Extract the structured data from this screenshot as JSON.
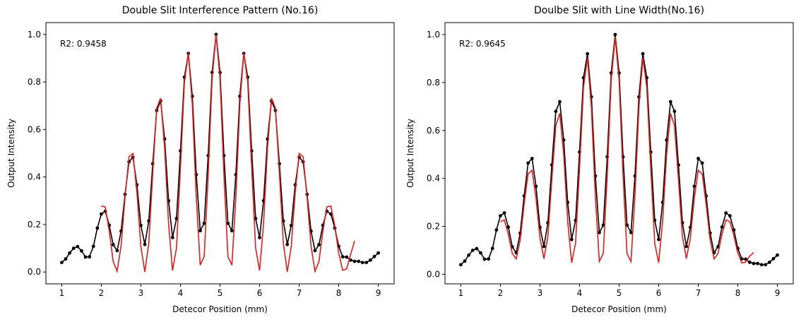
{
  "chart_data": [
    {
      "type": "line",
      "title": "Double Slit Interference Pattern (No.16)",
      "xlabel": "Detecor Position (mm)",
      "ylabel": "Output Intensity",
      "annotation": "R2: 0.9458",
      "xlim": [
        0.6,
        9.4
      ],
      "ylim": [
        -0.05,
        1.05
      ],
      "xticks": [
        1,
        2,
        3,
        4,
        5,
        6,
        7,
        8,
        9
      ],
      "yticks": [
        {
          "value": 0,
          "label": "0.0"
        },
        {
          "value": 0.2,
          "label": "0.2"
        },
        {
          "value": 0.4,
          "label": "0.4"
        },
        {
          "value": 0.6,
          "label": "0.6"
        },
        {
          "value": 0.8,
          "label": "0.8"
        },
        {
          "value": 1,
          "label": "1.0"
        }
      ],
      "series": [
        {
          "color": "#000000",
          "marker": true,
          "x": [
            1,
            1.1,
            1.2,
            1.3,
            1.4,
            1.5,
            1.6,
            1.7,
            1.8,
            1.9,
            2,
            2.1,
            2.2,
            2.3,
            2.4,
            2.5,
            2.6,
            2.7,
            2.8,
            2.9,
            3,
            3.1,
            3.2,
            3.3,
            3.4,
            3.5,
            3.6,
            3.7,
            3.8,
            3.9,
            4,
            4.1,
            4.2,
            4.3,
            4.4,
            4.5,
            4.6,
            4.7,
            4.8,
            4.9,
            5,
            5.1,
            5.2,
            5.3,
            5.4,
            5.5,
            5.6,
            5.7,
            5.8,
            5.9,
            6,
            6.1,
            6.2,
            6.3,
            6.4,
            6.5,
            6.6,
            6.7,
            6.8,
            6.9,
            7,
            7.1,
            7.2,
            7.3,
            7.4,
            7.5,
            7.6,
            7.7,
            7.8,
            7.9,
            8,
            8.1,
            8.2,
            8.3,
            8.4,
            8.5,
            8.6,
            8.7,
            8.8,
            8.9,
            9
          ],
          "values": [
            0.04,
            0.055,
            0.08,
            0.1,
            0.107,
            0.089,
            0.063,
            0.064,
            0.108,
            0.185,
            0.244,
            0.256,
            0.197,
            0.115,
            0.09,
            0.172,
            0.327,
            0.464,
            0.483,
            0.367,
            0.196,
            0.116,
            0.215,
            0.456,
            0.68,
            0.72,
            0.56,
            0.3,
            0.145,
            0.225,
            0.51,
            0.82,
            0.92,
            0.74,
            0.41,
            0.174,
            0.205,
            0.49,
            0.84,
            1.0,
            0.84,
            0.49,
            0.205,
            0.174,
            0.41,
            0.74,
            0.92,
            0.82,
            0.51,
            0.225,
            0.145,
            0.3,
            0.56,
            0.72,
            0.68,
            0.456,
            0.215,
            0.116,
            0.196,
            0.367,
            0.483,
            0.464,
            0.327,
            0.172,
            0.09,
            0.115,
            0.197,
            0.256,
            0.244,
            0.185,
            0.108,
            0.064,
            0.063,
            0.05,
            0.045,
            0.045,
            0.04,
            0.04,
            0.05,
            0.065,
            0.08
          ]
        },
        {
          "color": "#e31a1c",
          "marker": false,
          "x": [
            2,
            2.1,
            2.2,
            2.3,
            2.4,
            2.5,
            2.6,
            2.7,
            2.8,
            2.9,
            3,
            3.1,
            3.2,
            3.3,
            3.4,
            3.5,
            3.6,
            3.7,
            3.8,
            3.9,
            4,
            4.1,
            4.2,
            4.3,
            4.4,
            4.5,
            4.6,
            4.7,
            4.8,
            4.9,
            5,
            5.1,
            5.2,
            5.3,
            5.4,
            5.5,
            5.6,
            5.7,
            5.8,
            5.9,
            6,
            6.1,
            6.2,
            6.3,
            6.4,
            6.5,
            6.6,
            6.7,
            6.8,
            6.9,
            7,
            7.1,
            7.2,
            7.3,
            7.4,
            7.5,
            7.6,
            7.7,
            7.8,
            7.9,
            8,
            8.1,
            8.2,
            8.3,
            8.4
          ],
          "values": [
            0.278,
            0.274,
            0.173,
            0.044,
            0.003,
            0.11,
            0.315,
            0.485,
            0.499,
            0.335,
            0.107,
            0,
            0.121,
            0.417,
            0.69,
            0.732,
            0.523,
            0.203,
            0.006,
            0.101,
            0.44,
            0.799,
            0.923,
            0.705,
            0.313,
            0.029,
            0.065,
            0.405,
            0.813,
            1.0,
            0.813,
            0.405,
            0.065,
            0.029,
            0.313,
            0.705,
            0.923,
            0.799,
            0.44,
            0.101,
            0.006,
            0.203,
            0.523,
            0.732,
            0.69,
            0.417,
            0.121,
            0,
            0.107,
            0.335,
            0.499,
            0.485,
            0.315,
            0.11,
            0.003,
            0.044,
            0.173,
            0.274,
            0.278,
            0.195,
            0.079,
            0.007,
            0.013,
            0.074,
            0.131
          ]
        }
      ]
    },
    {
      "type": "line",
      "title": "Doulbe Slit with Line Width(No.16)",
      "xlabel": "Detecor Position (mm)",
      "ylabel": "Output Intensity",
      "annotation": "R2: 0.9645",
      "xlim": [
        0.6,
        9.4
      ],
      "ylim": [
        -0.04,
        1.05
      ],
      "xticks": [
        1,
        2,
        3,
        4,
        5,
        6,
        7,
        8,
        9
      ],
      "yticks": [
        {
          "value": 0,
          "label": "0.0"
        },
        {
          "value": 0.2,
          "label": "0.2"
        },
        {
          "value": 0.4,
          "label": "0.4"
        },
        {
          "value": 0.6,
          "label": "0.6"
        },
        {
          "value": 0.8,
          "label": "0.8"
        },
        {
          "value": 1,
          "label": "1.0"
        }
      ],
      "series": [
        {
          "color": "#000000",
          "marker": true,
          "x": [
            1,
            1.1,
            1.2,
            1.3,
            1.4,
            1.5,
            1.6,
            1.7,
            1.8,
            1.9,
            2,
            2.1,
            2.2,
            2.3,
            2.4,
            2.5,
            2.6,
            2.7,
            2.8,
            2.9,
            3,
            3.1,
            3.2,
            3.3,
            3.4,
            3.5,
            3.6,
            3.7,
            3.8,
            3.9,
            4,
            4.1,
            4.2,
            4.3,
            4.4,
            4.5,
            4.6,
            4.7,
            4.8,
            4.9,
            5,
            5.1,
            5.2,
            5.3,
            5.4,
            5.5,
            5.6,
            5.7,
            5.8,
            5.9,
            6,
            6.1,
            6.2,
            6.3,
            6.4,
            6.5,
            6.6,
            6.7,
            6.8,
            6.9,
            7,
            7.1,
            7.2,
            7.3,
            7.4,
            7.5,
            7.6,
            7.7,
            7.8,
            7.9,
            8,
            8.1,
            8.2,
            8.3,
            8.4,
            8.5,
            8.6,
            8.7,
            8.8,
            8.9,
            9
          ],
          "values": [
            0.04,
            0.055,
            0.08,
            0.1,
            0.107,
            0.089,
            0.063,
            0.064,
            0.108,
            0.185,
            0.244,
            0.256,
            0.197,
            0.115,
            0.09,
            0.172,
            0.327,
            0.464,
            0.483,
            0.367,
            0.196,
            0.116,
            0.215,
            0.456,
            0.68,
            0.72,
            0.56,
            0.3,
            0.145,
            0.225,
            0.51,
            0.82,
            0.92,
            0.74,
            0.41,
            0.174,
            0.205,
            0.49,
            0.84,
            1.0,
            0.84,
            0.49,
            0.205,
            0.174,
            0.41,
            0.74,
            0.92,
            0.82,
            0.51,
            0.225,
            0.145,
            0.3,
            0.56,
            0.72,
            0.68,
            0.456,
            0.215,
            0.116,
            0.196,
            0.367,
            0.483,
            0.464,
            0.327,
            0.172,
            0.09,
            0.115,
            0.197,
            0.256,
            0.244,
            0.185,
            0.108,
            0.064,
            0.063,
            0.05,
            0.045,
            0.045,
            0.04,
            0.04,
            0.05,
            0.065,
            0.08
          ]
        },
        {
          "color": "#e31a1c",
          "marker": false,
          "x": [
            2,
            2.1,
            2.2,
            2.3,
            2.4,
            2.5,
            2.6,
            2.7,
            2.8,
            2.9,
            3,
            3.1,
            3.2,
            3.3,
            3.4,
            3.5,
            3.6,
            3.7,
            3.8,
            3.9,
            4,
            4.1,
            4.2,
            4.3,
            4.4,
            4.5,
            4.6,
            4.7,
            4.8,
            4.9,
            5,
            5.1,
            5.2,
            5.3,
            5.4,
            5.5,
            5.6,
            5.7,
            5.8,
            5.9,
            6,
            6.1,
            6.2,
            6.3,
            6.4,
            6.5,
            6.6,
            6.7,
            6.8,
            6.9,
            7,
            7.1,
            7.2,
            7.3,
            7.4,
            7.5,
            7.6,
            7.7,
            7.8,
            7.9,
            8,
            8.1,
            8.2,
            8.3,
            8.4
          ],
          "values": [
            0.219,
            0.227,
            0.167,
            0.087,
            0.064,
            0.143,
            0.292,
            0.419,
            0.434,
            0.317,
            0.151,
            0.065,
            0.157,
            0.395,
            0.62,
            0.671,
            0.5,
            0.222,
            0.048,
            0.13,
            0.442,
            0.78,
            0.903,
            0.696,
            0.324,
            0.053,
            0.087,
            0.413,
            0.809,
            0.99,
            0.809,
            0.413,
            0.087,
            0.053,
            0.324,
            0.696,
            0.903,
            0.78,
            0.442,
            0.13,
            0.048,
            0.222,
            0.5,
            0.671,
            0.62,
            0.395,
            0.157,
            0.065,
            0.151,
            0.317,
            0.434,
            0.419,
            0.292,
            0.143,
            0.064,
            0.087,
            0.167,
            0.227,
            0.219,
            0.161,
            0.089,
            0.047,
            0.051,
            0.076,
            0.091
          ]
        }
      ]
    }
  ]
}
